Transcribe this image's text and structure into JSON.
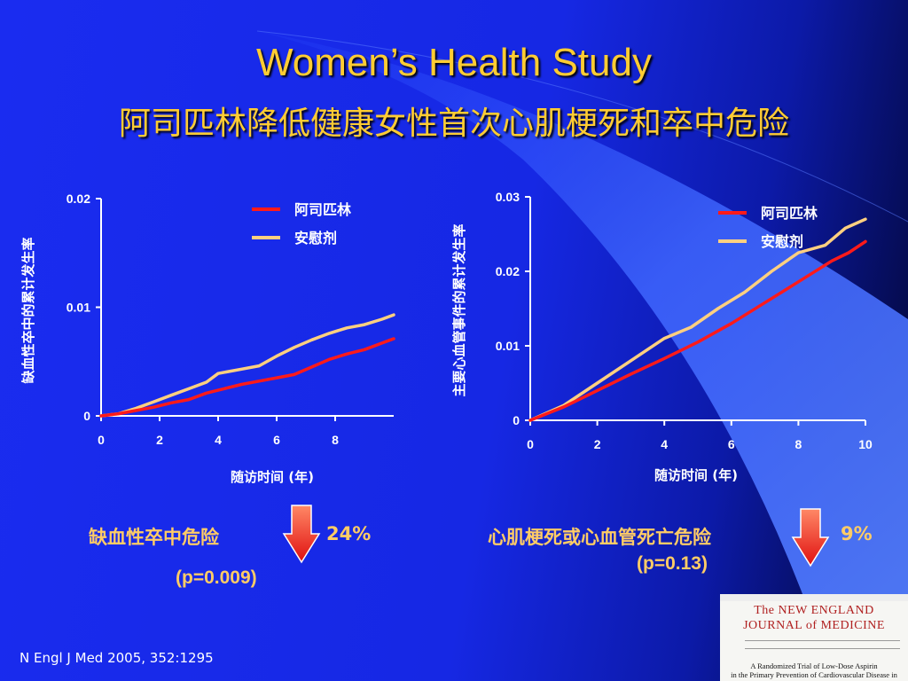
{
  "slide": {
    "title_en": "Women’s Health Study",
    "title_cn": "阿司匹林降低健康女性首次心肌梗死和卒中危险",
    "citation": "N Engl J Med 2005, 352:1295",
    "colors": {
      "title": "#ffcc33",
      "aspirin": "#ff1a1a",
      "placebo": "#ffd080",
      "text": "#ffffff",
      "finding": "#ffcc66"
    }
  },
  "findings": [
    {
      "label": "缺血性卒中危险",
      "reduction": "24%",
      "p": "(p=0.009)",
      "icon": "down-arrow-icon"
    },
    {
      "label": "心肌梗死或心血管死亡危险",
      "reduction": "9%",
      "p": "(p=0.13)",
      "icon": "down-arrow-icon"
    }
  ],
  "journal": {
    "masthead_line1": "The NEW ENGLAND",
    "masthead_line2": "JOURNAL of MEDICINE",
    "article_line1": "A Randomized Trial of Low-Dose Aspirin",
    "article_line2": "in the Primary Prevention of Cardiovascular Disease in Women"
  },
  "chart_data": [
    {
      "type": "line",
      "ylabel": "缺血性卒中的累计发生率",
      "xlabel": "随访时间 (年)",
      "xlim": [
        0,
        10
      ],
      "ylim": [
        0,
        0.02
      ],
      "xticks": [
        0,
        2,
        4,
        6,
        8
      ],
      "xtick_labels": [
        "0",
        "2",
        "4",
        "6",
        "8"
      ],
      "yticks": [
        0,
        0.01,
        0.02
      ],
      "ytick_labels": [
        "0",
        "0.01",
        "0.02"
      ],
      "legend": "top-right",
      "series": [
        {
          "name": "阿司匹林",
          "color": "#ff1a1a",
          "x": [
            0,
            0.6,
            1.2,
            1.8,
            2.4,
            3.0,
            3.6,
            4.2,
            4.8,
            5.4,
            6.0,
            6.6,
            7.2,
            7.8,
            8.4,
            9.0,
            9.6,
            10.0
          ],
          "y": [
            0,
            0.0002,
            0.0005,
            0.0008,
            0.0012,
            0.0015,
            0.0021,
            0.0025,
            0.0029,
            0.0032,
            0.0035,
            0.0038,
            0.0045,
            0.0052,
            0.0057,
            0.0061,
            0.0067,
            0.0071
          ]
        },
        {
          "name": "安慰剂",
          "color": "#ffd080",
          "x": [
            0,
            0.6,
            1.2,
            1.8,
            2.4,
            3.0,
            3.6,
            4.0,
            4.8,
            5.4,
            6.0,
            6.6,
            7.2,
            7.8,
            8.4,
            9.0,
            9.6,
            10.0
          ],
          "y": [
            0,
            0.0002,
            0.0007,
            0.0013,
            0.0019,
            0.0025,
            0.0031,
            0.0039,
            0.0043,
            0.0046,
            0.0055,
            0.0063,
            0.007,
            0.0076,
            0.0081,
            0.0084,
            0.0089,
            0.0093
          ]
        }
      ]
    },
    {
      "type": "line",
      "ylabel": "主要心血管事件的累计发生率",
      "xlabel": "随访时间 (年)",
      "xlim": [
        0,
        10
      ],
      "ylim": [
        0,
        0.03
      ],
      "xticks": [
        0,
        2,
        4,
        6,
        8,
        10
      ],
      "xtick_labels": [
        "0",
        "2",
        "4",
        "6",
        "8",
        "10"
      ],
      "yticks": [
        0,
        0.01,
        0.02,
        0.03
      ],
      "ytick_labels": [
        "0",
        "0.01",
        "0.02",
        "0.03"
      ],
      "legend": "top-right",
      "series": [
        {
          "name": "阿司匹林",
          "color": "#ff1a1a",
          "x": [
            0,
            1.0,
            2.0,
            3.0,
            4.0,
            5.0,
            6.0,
            7.0,
            8.0,
            9.0,
            9.5,
            10.0
          ],
          "y": [
            0,
            0.0018,
            0.004,
            0.0062,
            0.0083,
            0.0105,
            0.013,
            0.0158,
            0.0186,
            0.0214,
            0.0225,
            0.024
          ]
        },
        {
          "name": "安慰剂",
          "color": "#ffd080",
          "x": [
            0,
            1.0,
            2.0,
            3.0,
            4.0,
            4.8,
            5.6,
            6.4,
            7.2,
            8.0,
            8.8,
            9.4,
            10.0
          ],
          "y": [
            0,
            0.002,
            0.005,
            0.008,
            0.011,
            0.0125,
            0.015,
            0.0172,
            0.02,
            0.0225,
            0.0235,
            0.0258,
            0.027
          ]
        }
      ]
    }
  ]
}
